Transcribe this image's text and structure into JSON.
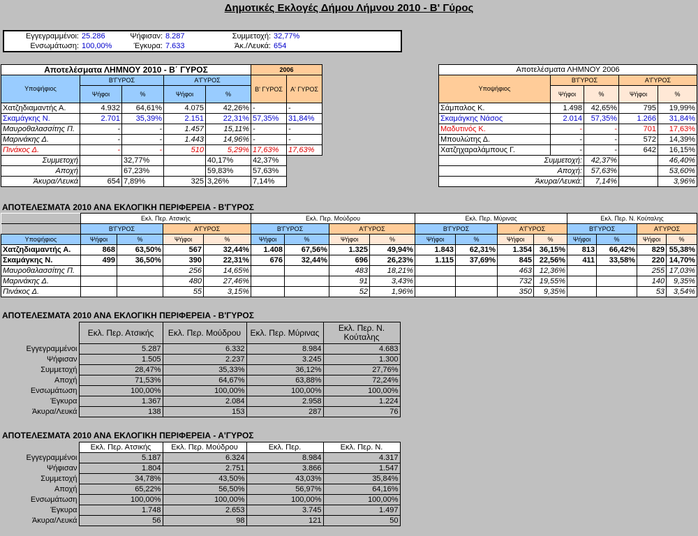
{
  "title": "Δημοτικές Εκλογές Δήμου Λήμνου 2010 - Β' Γύρος",
  "summary": {
    "row1": [
      {
        "label": "Εγγεγραμμένοι:",
        "value": "25.286"
      },
      {
        "label": "Ψήφισαν:",
        "value": "8.287"
      },
      {
        "label": "Συμμετοχή:",
        "value": "32,77%"
      }
    ],
    "row2": [
      {
        "label": "Ενσωμάτωση:",
        "value": "100,00%"
      },
      {
        "label": "Έγκυρα:",
        "value": "7.633"
      },
      {
        "label": "Άκ./Λευκά:",
        "value": "654"
      }
    ]
  },
  "results2010": {
    "title": "Αποτελέσματα ΛΗΜΝΟΥ 2010 - Β΄ ΓΥΡΟΣ",
    "candidate_header": "Υποψήφιος",
    "b_round": "Β'ΓΥΡΟΣ",
    "a_round": "Α'ΓΥΡΟΣ",
    "year": "2006",
    "votes": "Ψήφοι",
    "pct": "%",
    "b_round_2006": "Β' ΓΥΡΟΣ",
    "a_round_2006": "Α' ΓΥΡΟΣ",
    "rows": [
      {
        "name": "Χατζηδιαμαντής Α.",
        "bv": "4.932",
        "bp": "64,61%",
        "av": "4.075",
        "ap": "42,26%",
        "b06": "-",
        "a06": "-",
        "style": "normal"
      },
      {
        "name": "Σκαμάγκης Ν.",
        "bv": "2.701",
        "bp": "35,39%",
        "av": "2.151",
        "ap": "22,31%",
        "b06": "57,35%",
        "a06": "31,84%",
        "style": "blue"
      },
      {
        "name": "Μαυροθαλασσίτης Π.",
        "bv": "-",
        "bp": "-",
        "av": "1.457",
        "ap": "15,11%",
        "b06": "-",
        "a06": "-",
        "style": "italic"
      },
      {
        "name": "Μαρινάκης Δ.",
        "bv": "-",
        "bp": "-",
        "av": "1.443",
        "ap": "14,96%",
        "b06": "-",
        "a06": "-",
        "style": "italic"
      },
      {
        "name": "Πινάκος Δ.",
        "bv": "-",
        "bp": "-",
        "av": "510",
        "ap": "5,29%",
        "b06": "17,63%",
        "a06": "17,63%",
        "style": "red"
      }
    ],
    "stats": [
      {
        "label": "Συμμετοχή",
        "bv": "",
        "bp": "32,77%",
        "av": "",
        "ap": "40,17%",
        "b06": "42,37%"
      },
      {
        "label": "Αποχή",
        "bv": "",
        "bp": "67,23%",
        "av": "",
        "ap": "59,83%",
        "b06": "57,63%"
      },
      {
        "label": "Άκυρα/Λευκά",
        "bv": "654",
        "bp": "7,89%",
        "av": "325",
        "ap": "3,26%",
        "b06": "7,14%"
      }
    ]
  },
  "results2006": {
    "title": "Αποτελέσματα ΛΗΜΝΟΥ 2006",
    "candidate_header": "Υποψήφιος",
    "b_round": "Β'ΓΥΡΟΣ",
    "a_round": "Α'ΓΥΡΟΣ",
    "votes": "Ψήφοι",
    "pct": "%",
    "rows": [
      {
        "name": "Σάμπαλος Κ.",
        "bv": "1.498",
        "bp": "42,65%",
        "av": "795",
        "ap": "19,99%",
        "style": "normal"
      },
      {
        "name": "Σκαμάγκης Νάσος",
        "bv": "2.014",
        "bp": "57,35%",
        "av": "1.266",
        "ap": "31,84%",
        "style": "blue"
      },
      {
        "name": "Μαδυτινός Κ.",
        "bv": "-",
        "bp": "-",
        "av": "701",
        "ap": "17,63%",
        "style": "red"
      },
      {
        "name": "Μπουλώτης Δ.",
        "bv": "-",
        "bp": "-",
        "av": "572",
        "ap": "14,39%",
        "style": "normal"
      },
      {
        "name": "Χατζηχαραλάμπους Γ.",
        "bv": "-",
        "bp": "-",
        "av": "642",
        "ap": "16,15%",
        "style": "normal"
      }
    ],
    "stats": [
      {
        "label": "Συμμετοχή:",
        "bp": "42,37%",
        "ap": "46,40%"
      },
      {
        "label": "Αποχή:",
        "bp": "57,63%",
        "ap": "53,60%"
      },
      {
        "label": "Άκυρα/Λευκά:",
        "bp": "7,14%",
        "ap": "3,96%"
      }
    ]
  },
  "districts": {
    "title": "ΑΠΟΤΕΛΕΣΜΑΤΑ 2010  ΑΝΑ ΕΚΛΟΓΙΚΗ ΠΕΡΙΦΕΡΕΙΑ - Β'ΓΥΡΟΣ",
    "candidate_header": "Υποψήφιος",
    "b_round": "Β'ΓΥΡΟΣ",
    "a_round": "Α'ΓΥΡΟΣ",
    "votes": "Ψήφοι",
    "pct": "%",
    "names": [
      "Εκλ. Περ. Ατσικής",
      "Εκλ. Περ. Μούδρου",
      "Εκλ. Περ. Μύρινας",
      "Εκλ. Περ. Ν. Κούταλης"
    ],
    "rows": [
      {
        "name": "Χατζηδιαμαντής Α.",
        "style": "bold",
        "cells": [
          [
            "868",
            "63,50%",
            "567",
            "32,44%"
          ],
          [
            "1.408",
            "67,56%",
            "1.325",
            "49,94%"
          ],
          [
            "1.843",
            "62,31%",
            "1.354",
            "36,15%"
          ],
          [
            "813",
            "66,42%",
            "829",
            "55,38%"
          ]
        ]
      },
      {
        "name": "Σκαμάγκης Ν.",
        "style": "bold",
        "cells": [
          [
            "499",
            "36,50%",
            "390",
            "22,31%"
          ],
          [
            "676",
            "32,44%",
            "696",
            "26,23%"
          ],
          [
            "1.115",
            "37,69%",
            "845",
            "22,56%"
          ],
          [
            "411",
            "33,58%",
            "220",
            "14,70%"
          ]
        ]
      },
      {
        "name": "Μαυροθαλασσίτης Π.",
        "style": "italic",
        "cells": [
          [
            "",
            "",
            "256",
            "14,65%"
          ],
          [
            "",
            "",
            "483",
            "18,21%"
          ],
          [
            "",
            "",
            "463",
            "12,36%"
          ],
          [
            "",
            "",
            "255",
            "17,03%"
          ]
        ]
      },
      {
        "name": "Μαρινάκης Δ.",
        "style": "italic",
        "cells": [
          [
            "",
            "",
            "480",
            "27,46%"
          ],
          [
            "",
            "",
            "91",
            "3,43%"
          ],
          [
            "",
            "",
            "732",
            "19,55%"
          ],
          [
            "",
            "",
            "140",
            "9,35%"
          ]
        ]
      },
      {
        "name": "Πινάκος Δ.",
        "style": "italic",
        "cells": [
          [
            "",
            "",
            "55",
            "3,15%"
          ],
          [
            "",
            "",
            "52",
            "1,96%"
          ],
          [
            "",
            "",
            "350",
            "9,35%"
          ],
          [
            "",
            "",
            "53",
            "3,54%"
          ]
        ]
      }
    ]
  },
  "stats_b": {
    "title": "ΑΠΟΤΕΛΕΣΜΑΤΑ 2010  ΑΝΑ ΕΚΛΟΓΙΚΗ ΠΕΡΙΦΕΡΕΙΑ - Β'ΓΥΡΟΣ",
    "headers": [
      "Εκλ. Περ. Ατσικής",
      "Εκλ. Περ. Μούδρου",
      "Εκλ. Περ. Μύρινας",
      "Εκλ. Περ. Ν. Κούταλης"
    ],
    "rows": [
      {
        "label": "Εγγεγραμμένοι",
        "vals": [
          "5.287",
          "6.332",
          "8.984",
          "4.683"
        ]
      },
      {
        "label": "Ψήφισαν",
        "vals": [
          "1.505",
          "2.237",
          "3.245",
          "1.300"
        ]
      },
      {
        "label": "Συμμετοχή",
        "vals": [
          "28,47%",
          "35,33%",
          "36,12%",
          "27,76%"
        ]
      },
      {
        "label": "Αποχή",
        "vals": [
          "71,53%",
          "64,67%",
          "63,88%",
          "72,24%"
        ]
      },
      {
        "label": "Ενσωμάτωση",
        "vals": [
          "100,00%",
          "100,00%",
          "100,00%",
          "100,00%"
        ]
      },
      {
        "label": "Έγκυρα",
        "vals": [
          "1.367",
          "2.084",
          "2.958",
          "1.224"
        ]
      },
      {
        "label": "Άκυρα/Λευκά",
        "vals": [
          "138",
          "153",
          "287",
          "76"
        ]
      }
    ]
  },
  "stats_a": {
    "title": "ΑΠΟΤΕΛΕΣΜΑΤΑ 2010  ΑΝΑ ΕΚΛΟΓΙΚΗ ΠΕΡΙΦΕΡΕΙΑ - Α'ΓΥΡΟΣ",
    "headers": [
      "Εκλ. Περ. Ατσικής",
      "Εκλ. Περ. Μούδρου",
      "Εκλ. Περ.",
      "Εκλ. Περ. Ν."
    ],
    "rows": [
      {
        "label": "Εγγεγραμμένοι",
        "vals": [
          "5.187",
          "6.324",
          "8.984",
          "4.317"
        ]
      },
      {
        "label": "Ψήφισαν",
        "vals": [
          "1.804",
          "2.751",
          "3.866",
          "1.547"
        ]
      },
      {
        "label": "Συμμετοχή",
        "vals": [
          "34,78%",
          "43,50%",
          "43,03%",
          "35,84%"
        ]
      },
      {
        "label": "Αποχή",
        "vals": [
          "65,22%",
          "56,50%",
          "56,97%",
          "64,16%"
        ]
      },
      {
        "label": "Ενσωμάτωση",
        "vals": [
          "100,00%",
          "100,00%",
          "100,00%",
          "100,00%"
        ]
      },
      {
        "label": "Έγκυρα",
        "vals": [
          "1.748",
          "2.653",
          "3.745",
          "1.497"
        ]
      },
      {
        "label": "Άκυρα/Λευκά",
        "vals": [
          "56",
          "98",
          "121",
          "50"
        ]
      }
    ]
  }
}
